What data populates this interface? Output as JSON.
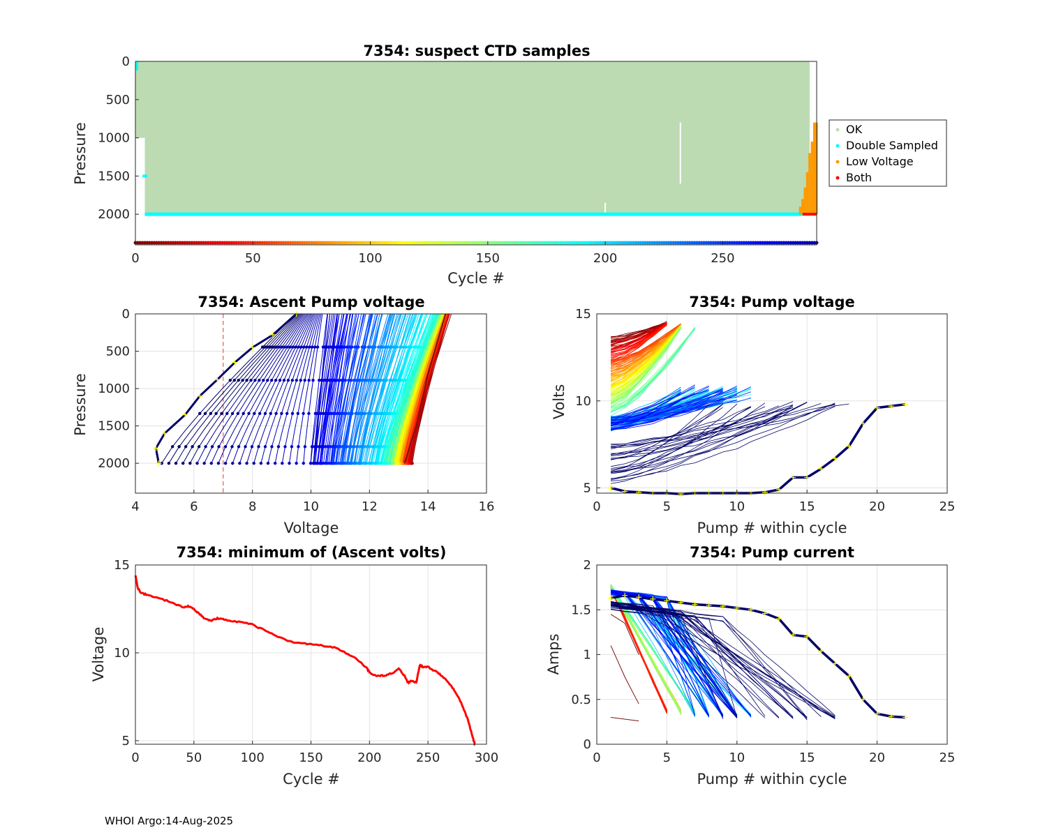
{
  "footer": "WHOI Argo:14-Aug-2025",
  "colors": {
    "ok": "#bcdbb2",
    "double": "#00ffff",
    "low": "#ff9900",
    "both": "#ff0000",
    "navy": "#000066",
    "grid": "#e3e3e3",
    "dash": "#d43b3b",
    "marker": "#ffff00"
  },
  "chart_data": [
    {
      "id": "ctd",
      "type": "scatter",
      "title": "7354: suspect CTD samples",
      "xlabel": "Cycle #",
      "ylabel": "Pressure",
      "xlim": [
        0,
        290
      ],
      "ylim": [
        0,
        2400
      ],
      "y_reversed": true,
      "xticks": [
        0,
        50,
        100,
        150,
        200,
        250
      ],
      "yticks": [
        0,
        500,
        1000,
        1500,
        2000
      ],
      "legend": {
        "position": "outside-right",
        "entries": [
          "OK",
          "Double Sampled",
          "Low Voltage",
          "Both"
        ]
      },
      "ok_region": {
        "cycles": [
          4,
          287
        ],
        "pressure": [
          0,
          2000
        ]
      },
      "double_sampled_bottom": {
        "cycles": [
          4,
          284
        ],
        "pressure": 2000
      },
      "double_sampled_early": {
        "cycle": 1,
        "pressure": [
          0,
          1500
        ]
      },
      "gap_profiles": [
        {
          "cycle": 232,
          "pressure_top": 800,
          "pressure_bottom": 1600
        },
        {
          "cycle": 200,
          "pressure_top": 1850,
          "pressure_bottom": 2000
        }
      ],
      "low_voltage": {
        "cycles": [
          283,
          284,
          285,
          286,
          287,
          288,
          289,
          290
        ],
        "tops": [
          1900,
          1800,
          1650,
          1450,
          1200,
          1050,
          800,
          800
        ],
        "bottom": 2000
      },
      "both": {
        "cycles": [
          284,
          290
        ],
        "pressure": 2000
      },
      "cycle_markers_pressure": 2400
    },
    {
      "id": "ascent",
      "type": "line",
      "title": "7354: Ascent Pump voltage",
      "xlabel": "Voltage",
      "ylabel": "Pressure",
      "xlim": [
        4,
        16
      ],
      "ylim": [
        0,
        2400
      ],
      "y_reversed": true,
      "xticks": [
        4,
        6,
        8,
        10,
        12,
        14,
        16
      ],
      "yticks": [
        0,
        500,
        1000,
        1500,
        2000
      ],
      "threshold_voltage": 7,
      "profiles_note": "one line per cycle from its 2000 dbar start voltage to its surface voltage",
      "last_profile": {
        "voltage": [
          4.8,
          4.7,
          5.0,
          5.7,
          6.2,
          6.8,
          7.4,
          8.0,
          8.7,
          9.5
        ],
        "pressure": [
          2000,
          1800,
          1600,
          1350,
          1100,
          880,
          650,
          450,
          280,
          0
        ]
      },
      "early_profile": {
        "voltage": [
          13.2,
          13.6,
          14.0,
          14.6
        ],
        "pressure": [
          2000,
          1500,
          800,
          0
        ]
      }
    },
    {
      "id": "pumpv",
      "type": "line",
      "title": "7354: Pump voltage",
      "xlabel": "Pump # within cycle",
      "ylabel": "Volts",
      "xlim": [
        0,
        25
      ],
      "ylim": [
        4.7,
        15
      ],
      "xticks": [
        0,
        5,
        10,
        15,
        20,
        25
      ],
      "yticks": [
        5,
        10,
        15
      ],
      "last_cycle": {
        "pump": [
          1,
          2,
          3,
          4,
          5,
          6,
          7,
          8,
          9,
          10,
          11,
          12,
          13,
          14,
          15,
          16,
          17,
          18,
          19,
          20,
          21,
          22
        ],
        "volts": [
          5.0,
          4.8,
          4.75,
          4.7,
          4.7,
          4.65,
          4.7,
          4.7,
          4.7,
          4.7,
          4.7,
          4.75,
          4.9,
          5.6,
          5.6,
          6.1,
          6.7,
          7.4,
          8.7,
          9.6,
          9.7,
          9.8
        ]
      }
    },
    {
      "id": "minv",
      "type": "line",
      "title": "7354: minimum of (Ascent volts)",
      "xlabel": "Cycle #",
      "ylabel": "Voltage",
      "xlim": [
        0,
        300
      ],
      "ylim": [
        4.8,
        15
      ],
      "xticks": [
        0,
        50,
        100,
        150,
        200,
        250,
        300
      ],
      "yticks": [
        5,
        10,
        15
      ],
      "series": [
        {
          "name": "min ascent volts",
          "x": [
            0,
            2,
            5,
            10,
            20,
            30,
            40,
            45,
            50,
            55,
            60,
            65,
            70,
            75,
            80,
            90,
            100,
            110,
            120,
            130,
            140,
            150,
            160,
            170,
            180,
            190,
            198,
            200,
            205,
            210,
            215,
            220,
            225,
            230,
            233,
            236,
            240,
            243,
            246,
            250,
            255,
            260,
            265,
            270,
            275,
            280,
            284,
            287,
            289,
            290
          ],
          "y": [
            14.4,
            13.7,
            13.4,
            13.3,
            13.1,
            12.9,
            12.6,
            12.65,
            12.5,
            12.2,
            11.9,
            11.85,
            11.95,
            11.9,
            11.85,
            11.75,
            11.6,
            11.3,
            11.0,
            10.65,
            10.55,
            10.5,
            10.4,
            10.3,
            10.0,
            9.6,
            9.1,
            8.9,
            8.7,
            8.7,
            8.75,
            8.85,
            9.1,
            8.7,
            8.3,
            8.4,
            8.3,
            9.3,
            9.2,
            9.2,
            9.0,
            8.8,
            8.5,
            8.1,
            7.6,
            6.9,
            6.2,
            5.5,
            5.0,
            4.8
          ]
        }
      ]
    },
    {
      "id": "pumpc",
      "type": "line",
      "title": "7354: Pump current",
      "xlabel": "Pump # within cycle",
      "ylabel": "Amps",
      "xlim": [
        0,
        25
      ],
      "ylim": [
        0,
        2
      ],
      "xticks": [
        0,
        5,
        10,
        15,
        20,
        25
      ],
      "yticks": [
        0,
        0.5,
        1,
        1.5,
        2
      ],
      "last_cycle": {
        "pump": [
          1,
          2,
          3,
          4,
          5,
          6,
          7,
          8,
          9,
          10,
          11,
          12,
          13,
          14,
          15,
          16,
          17,
          18,
          19,
          20,
          21,
          22
        ],
        "amps": [
          1.63,
          1.66,
          1.64,
          1.62,
          1.6,
          1.58,
          1.56,
          1.55,
          1.54,
          1.52,
          1.5,
          1.46,
          1.4,
          1.22,
          1.2,
          1.04,
          0.9,
          0.76,
          0.5,
          0.34,
          0.31,
          0.3
        ]
      }
    }
  ]
}
